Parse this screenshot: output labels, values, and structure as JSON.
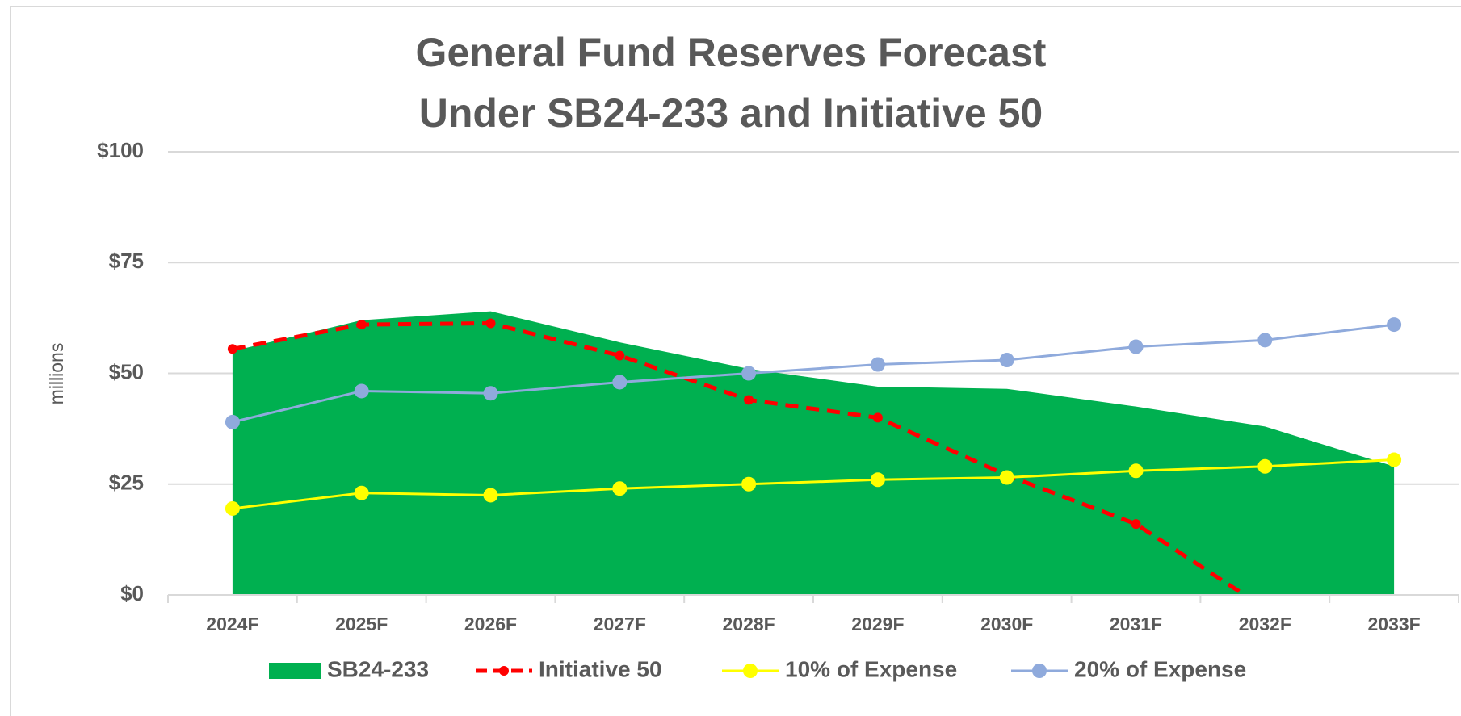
{
  "chart_data": {
    "type": "line",
    "title": [
      "General Fund Reserves Forecast",
      "Under SB24-233 and Initiative 50"
    ],
    "y_label": "millions",
    "categories": [
      "2024F",
      "2025F",
      "2026F",
      "2027F",
      "2028F",
      "2029F",
      "2030F",
      "2031F",
      "2032F",
      "2033F"
    ],
    "series": [
      {
        "name": "SB24-233",
        "type": "area",
        "color": "#00b050",
        "values": [
          55,
          62,
          64,
          57,
          51,
          47,
          46.5,
          42.5,
          38,
          29
        ]
      },
      {
        "name": "Initiative 50",
        "type": "line",
        "dashed": true,
        "color": "#ff0000",
        "values": [
          55.5,
          61,
          61.3,
          54,
          44,
          40,
          27,
          16,
          -3,
          null
        ]
      },
      {
        "name": "10% of Expense",
        "type": "line",
        "color": "#ffff00",
        "values": [
          19.5,
          23,
          22.5,
          24,
          25,
          26,
          26.5,
          28,
          29,
          30.5
        ]
      },
      {
        "name": "20% of Expense",
        "type": "line",
        "color": "#8faadc",
        "values": [
          39,
          46,
          45.5,
          48,
          50,
          52,
          53,
          56,
          57.5,
          61
        ]
      }
    ],
    "ylim": [
      0,
      100
    ],
    "yticks": [
      {
        "value": 0,
        "label": "$0"
      },
      {
        "value": 25,
        "label": "$25"
      },
      {
        "value": 50,
        "label": "$50"
      },
      {
        "value": 75,
        "label": "$75"
      },
      {
        "value": 100,
        "label": "$100"
      }
    ],
    "grid": true,
    "legend": "bottom"
  }
}
